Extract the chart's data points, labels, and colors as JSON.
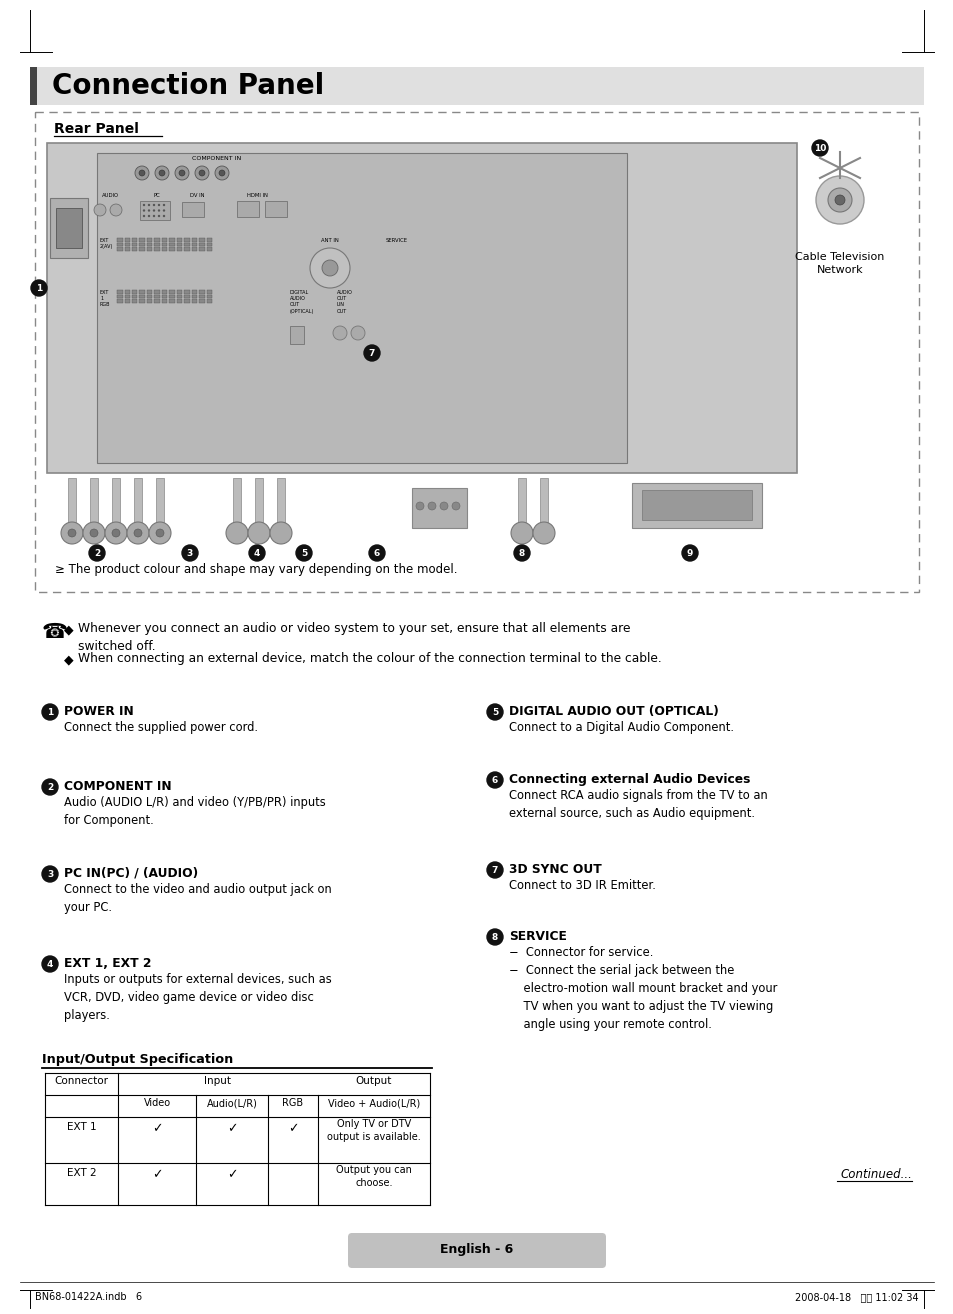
{
  "title": "Connection Panel",
  "page_bg": "#ffffff",
  "title_fontsize": 20,
  "rear_panel_label": "Rear Panel",
  "note1": "Whenever you connect an audio or video system to your set, ensure that all elements are\nswitched off.",
  "note2": "When connecting an external device, match the colour of the connection terminal to the cable.",
  "items_left": [
    {
      "num": "1",
      "heading": "POWER IN",
      "text": "Connect the supplied power cord."
    },
    {
      "num": "2",
      "heading": "COMPONENT IN",
      "text": "Audio (AUDIO L/R) and video (Y/PB/PR) inputs\nfor Component."
    },
    {
      "num": "3",
      "heading": "PC IN(PC) / (AUDIO)",
      "text": "Connect to the video and audio output jack on\nyour PC."
    },
    {
      "num": "4",
      "heading": "EXT 1, EXT 2",
      "text": "Inputs or outputs for external devices, such as\nVCR, DVD, video game device or video disc\nplayers."
    }
  ],
  "items_right": [
    {
      "num": "5",
      "heading": "DIGITAL AUDIO OUT (OPTICAL)",
      "text": "Connect to a Digital Audio Component."
    },
    {
      "num": "6",
      "heading": "Connecting external Audio Devices",
      "text": "Connect RCA audio signals from the TV to an\nexternal source, such as Audio equipment."
    },
    {
      "num": "7",
      "heading": "3D SYNC OUT",
      "text": "Connect to 3D IR Emitter."
    },
    {
      "num": "8",
      "heading": "SERVICE",
      "text": "−  Connector for service.\n−  Connect the serial jack between the\n    electro-motion wall mount bracket and your\n    TV when you want to adjust the TV viewing\n    angle using your remote control."
    }
  ],
  "table_title": "Input/Output Specification",
  "table_cols": [
    45,
    118,
    196,
    268,
    318,
    430
  ],
  "table_headers": [
    "Connector",
    "Input",
    "Output"
  ],
  "table_sub_headers": [
    "Video",
    "Audio(L/R)",
    "RGB",
    "Video + Audio(L/R)"
  ],
  "table_row1": [
    "EXT 1",
    "✓",
    "✓",
    "✓",
    "Only TV or DTV\noutput is available."
  ],
  "table_row2": [
    "EXT 2",
    "✓",
    "✓",
    "",
    "Output you can\nchoose."
  ],
  "footer_text": "English - 6",
  "continued_text": "Continued...",
  "bottom_left": "BN68-01422A.indb   6",
  "bottom_right": "2008-04-18   오전 11:02 34",
  "product_note": "≥ The product colour and shape may vary depending on the model."
}
